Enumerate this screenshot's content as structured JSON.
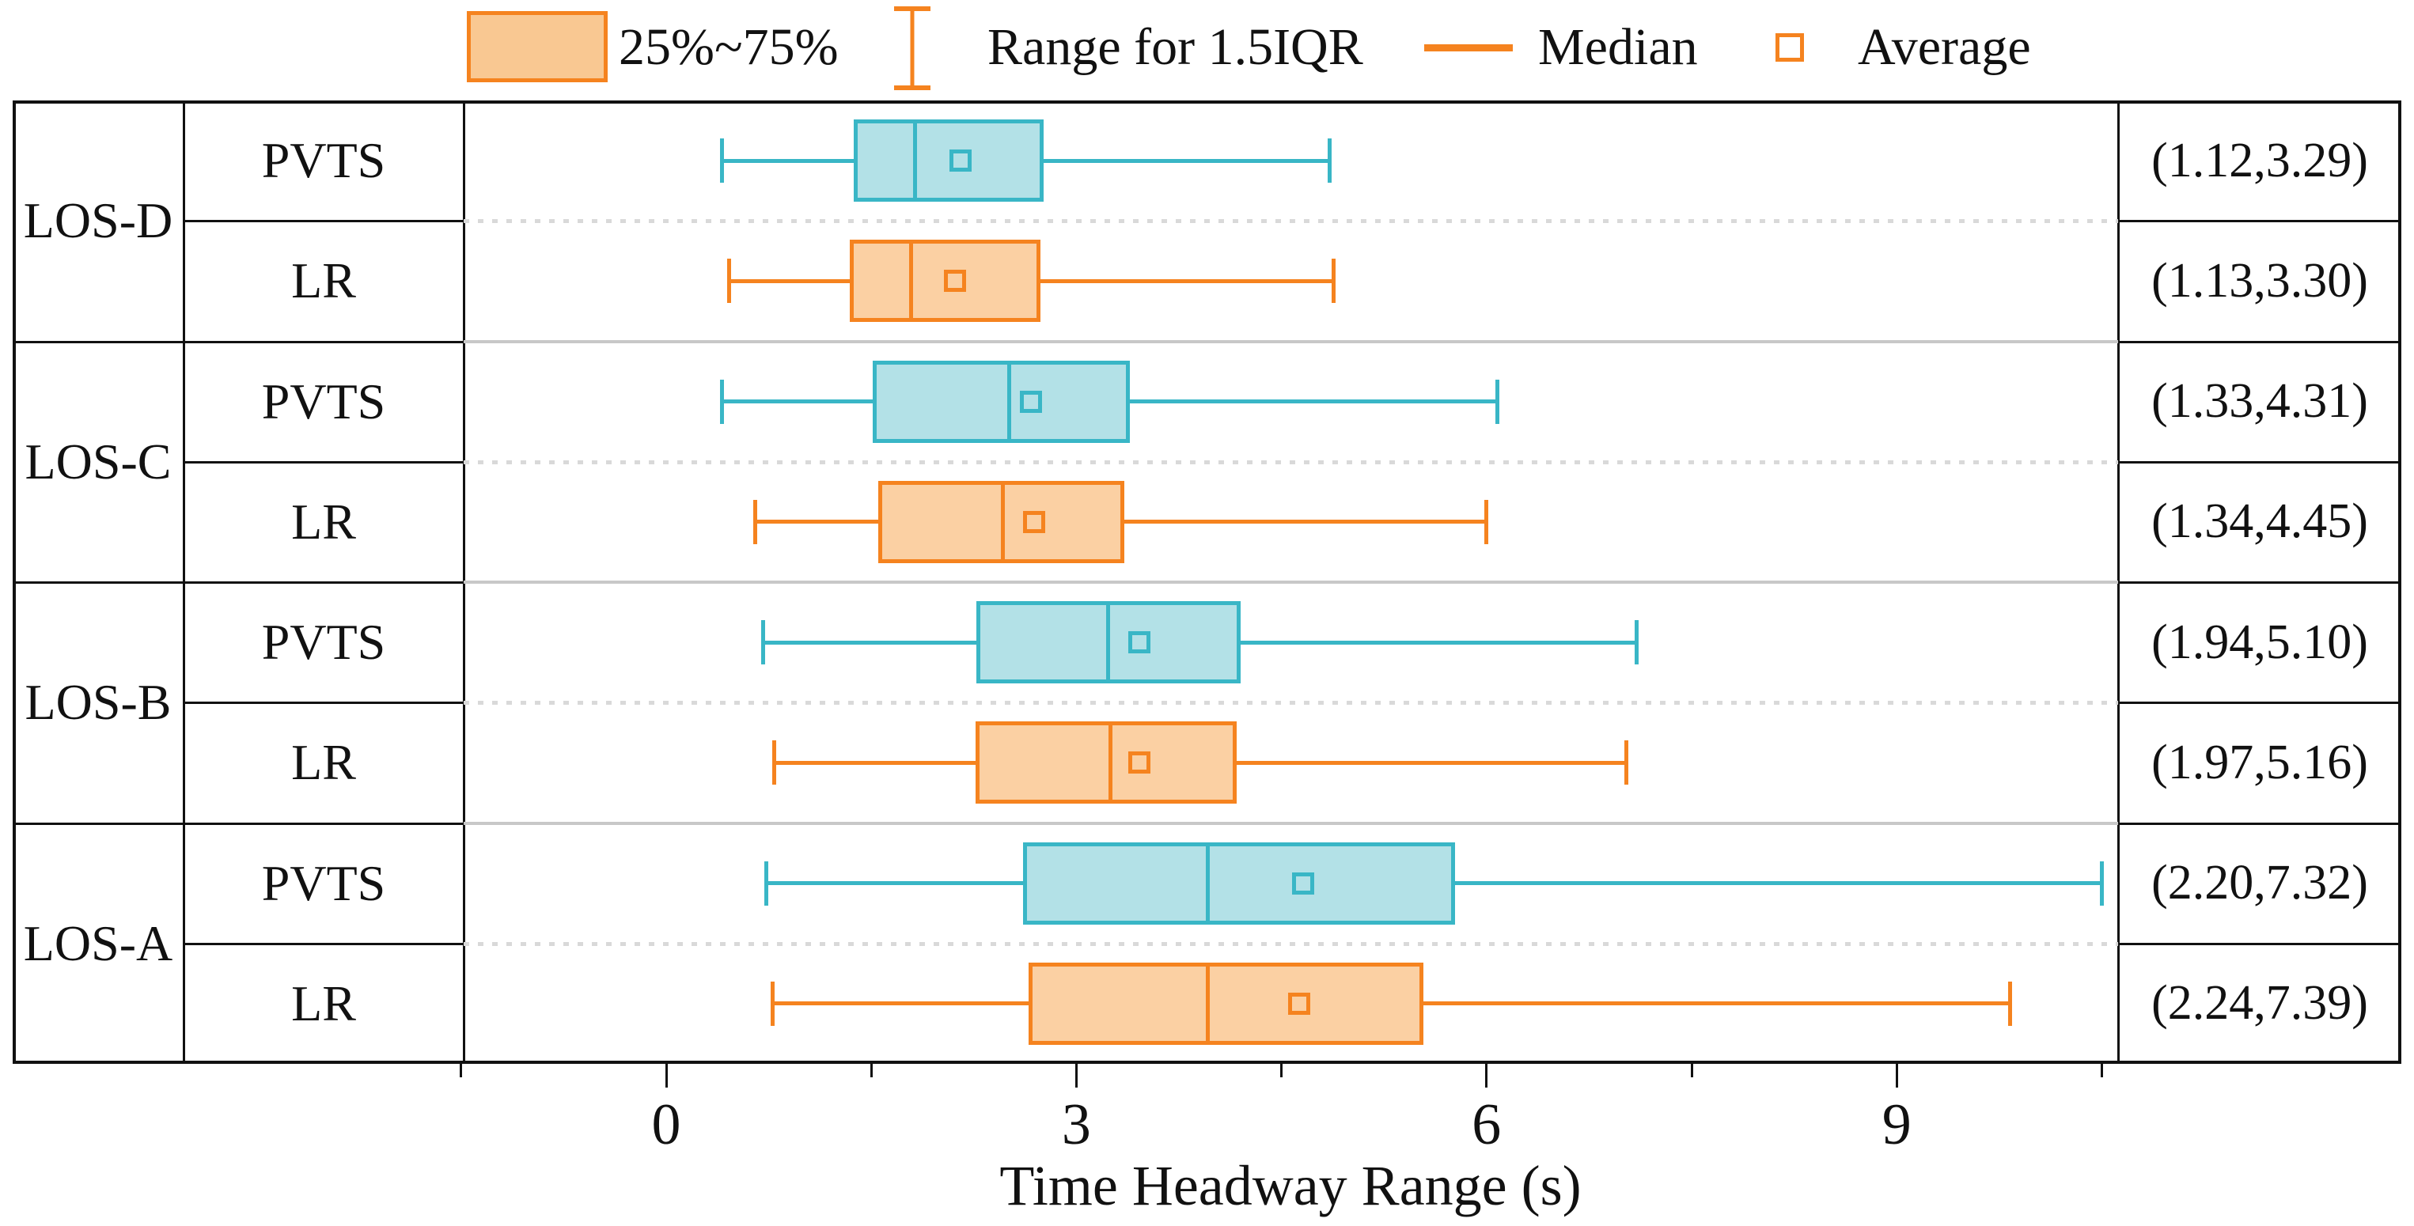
{
  "legend": {
    "items": [
      {
        "icon": "box-swatch-icon",
        "label": "25%~75%"
      },
      {
        "icon": "whisker-range-icon",
        "label": "Range for 1.5IQR"
      },
      {
        "icon": "median-line-icon",
        "label": "Median"
      },
      {
        "icon": "average-square-icon",
        "label": "Average"
      }
    ]
  },
  "axis": {
    "title": "Time Headway Range (s)",
    "major_ticks": [
      0,
      3,
      6,
      9
    ],
    "minor_ticks": [
      -1.5,
      1.5,
      4.5,
      7.5,
      10.5
    ],
    "range": [
      -1.48,
      10.63
    ]
  },
  "colors": {
    "PVTS": {
      "border": "#39b6c6",
      "fill": "#b3e1e7"
    },
    "LR": {
      "border": "#f5831f",
      "fill": "#fbd0a3"
    },
    "legend_accent": "#f5831f",
    "legend_swatch_fill": "#f9c892",
    "grid_black": "#111111",
    "separator_solid": "#c8c8c8",
    "separator_dotted": "#d9d9d9"
  },
  "chart_data": {
    "type": "boxplot-horizontal",
    "xlabel": "Time Headway Range (s)",
    "x_major_ticks": [
      0,
      3,
      6,
      9
    ],
    "xlim": [
      -1.48,
      10.63
    ],
    "legend": [
      "25%~75%",
      "Range for 1.5IQR",
      "Median",
      "Average"
    ],
    "groups": [
      {
        "los": "LOS-D",
        "rows": [
          {
            "method": "PVTS",
            "series": "PVTS",
            "whisker_low": 0.41,
            "q1": 1.37,
            "median": 1.82,
            "q3": 2.76,
            "whisker_high": 4.85,
            "average": 2.15,
            "range_label": "(1.12,3.29)"
          },
          {
            "method": "LR",
            "series": "LR",
            "whisker_low": 0.46,
            "q1": 1.34,
            "median": 1.79,
            "q3": 2.74,
            "whisker_high": 4.88,
            "average": 2.11,
            "range_label": "(1.13,3.30)"
          }
        ]
      },
      {
        "los": "LOS-C",
        "rows": [
          {
            "method": "PVTS",
            "series": "PVTS",
            "whisker_low": 0.41,
            "q1": 1.51,
            "median": 2.51,
            "q3": 3.39,
            "whisker_high": 6.08,
            "average": 2.67,
            "range_label": "(1.33,4.31)"
          },
          {
            "method": "LR",
            "series": "LR",
            "whisker_low": 0.65,
            "q1": 1.55,
            "median": 2.46,
            "q3": 3.35,
            "whisker_high": 6.0,
            "average": 2.69,
            "range_label": "(1.34,4.45)"
          }
        ]
      },
      {
        "los": "LOS-B",
        "rows": [
          {
            "method": "PVTS",
            "series": "PVTS",
            "whisker_low": 0.71,
            "q1": 2.27,
            "median": 3.23,
            "q3": 4.2,
            "whisker_high": 7.1,
            "average": 3.46,
            "range_label": "(1.94,5.10)"
          },
          {
            "method": "LR",
            "series": "LR",
            "whisker_low": 0.79,
            "q1": 2.26,
            "median": 3.25,
            "q3": 4.17,
            "whisker_high": 7.02,
            "average": 3.46,
            "range_label": "(1.97,5.16)"
          }
        ]
      },
      {
        "los": "LOS-A",
        "rows": [
          {
            "method": "PVTS",
            "series": "PVTS",
            "whisker_low": 0.73,
            "q1": 2.61,
            "median": 3.96,
            "q3": 5.77,
            "whisker_high": 10.5,
            "average": 4.66,
            "range_label": "(2.20,7.32)"
          },
          {
            "method": "LR",
            "series": "LR",
            "whisker_low": 0.78,
            "q1": 2.65,
            "median": 3.96,
            "q3": 5.54,
            "whisker_high": 9.83,
            "average": 4.63,
            "range_label": "(2.24,7.39)"
          }
        ]
      }
    ]
  }
}
